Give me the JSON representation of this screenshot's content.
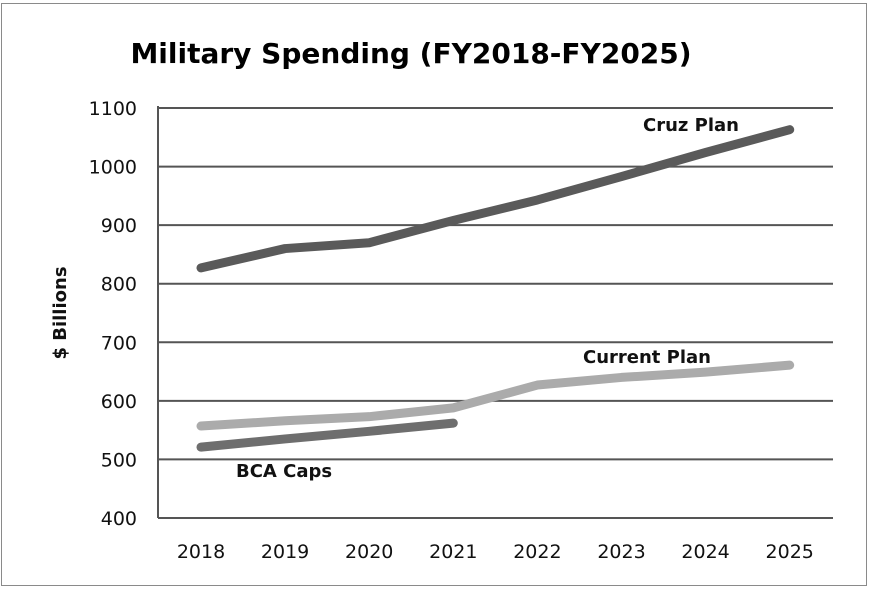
{
  "chart_data": {
    "type": "line",
    "title": "Military Spending  (FY2018-FY2025)",
    "xlabel": "",
    "ylabel": "$ Billions",
    "categories": [
      "2018",
      "2019",
      "2020",
      "2021",
      "2022",
      "2023",
      "2024",
      "2025"
    ],
    "ylim": [
      400,
      1100
    ],
    "yticks": [
      "400",
      "500",
      "600",
      "700",
      "800",
      "900",
      "1000",
      "1100"
    ],
    "grid": true,
    "series": [
      {
        "name": "Cruz  Plan",
        "color": "#5a5a5a",
        "values": [
          827,
          860,
          870,
          908,
          943,
          983,
          1024,
          1063
        ]
      },
      {
        "name": "Current Plan",
        "color": "#ababab",
        "values": [
          557,
          566,
          573,
          588,
          627,
          640,
          649,
          661
        ]
      },
      {
        "name": "BCA Caps",
        "color": "#6e6e6e",
        "values": [
          521,
          535,
          548,
          562,
          null,
          null,
          null,
          null
        ]
      }
    ]
  }
}
